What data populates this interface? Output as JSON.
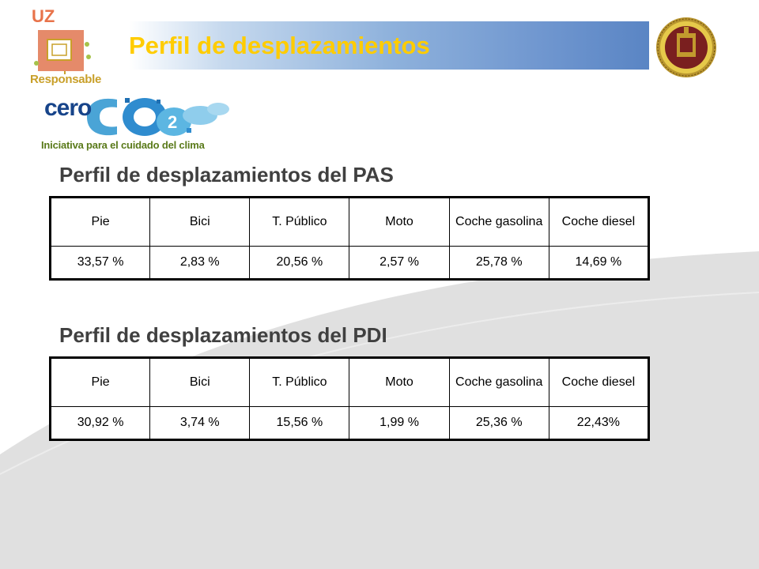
{
  "header": {
    "title": "Perfil de desplazamientos"
  },
  "logos": {
    "uz_short": "UZ",
    "uz_responsable": "Responsable",
    "cero_word": "cero",
    "cero_tagline": "Iniciativa para el cuidado del clima"
  },
  "tables": [
    {
      "title": "Perfil de desplazamientos del PAS",
      "headers": [
        "Pie",
        "Bici",
        "T. Público",
        "Moto",
        "Coche gasolina",
        "Coche diesel"
      ],
      "values": [
        "33,57 %",
        "2,83 %",
        "20,56 %",
        "2,57 %",
        "25,78 %",
        "14,69 %"
      ]
    },
    {
      "title": "Perfil de desplazamientos del PDI",
      "headers": [
        "Pie",
        "Bici",
        "T. Público",
        "Moto",
        "Coche gasolina",
        "Coche diesel"
      ],
      "values": [
        "30,92 %",
        "3,74 %",
        "15,56 %",
        "1,99 %",
        "25,36 %",
        "22,43%"
      ]
    }
  ],
  "colors": {
    "title_yellow": "#ffcc00",
    "header_blue": "#5a85c4",
    "swoosh_gray": "#e0e0e0",
    "section_title": "#404040"
  }
}
